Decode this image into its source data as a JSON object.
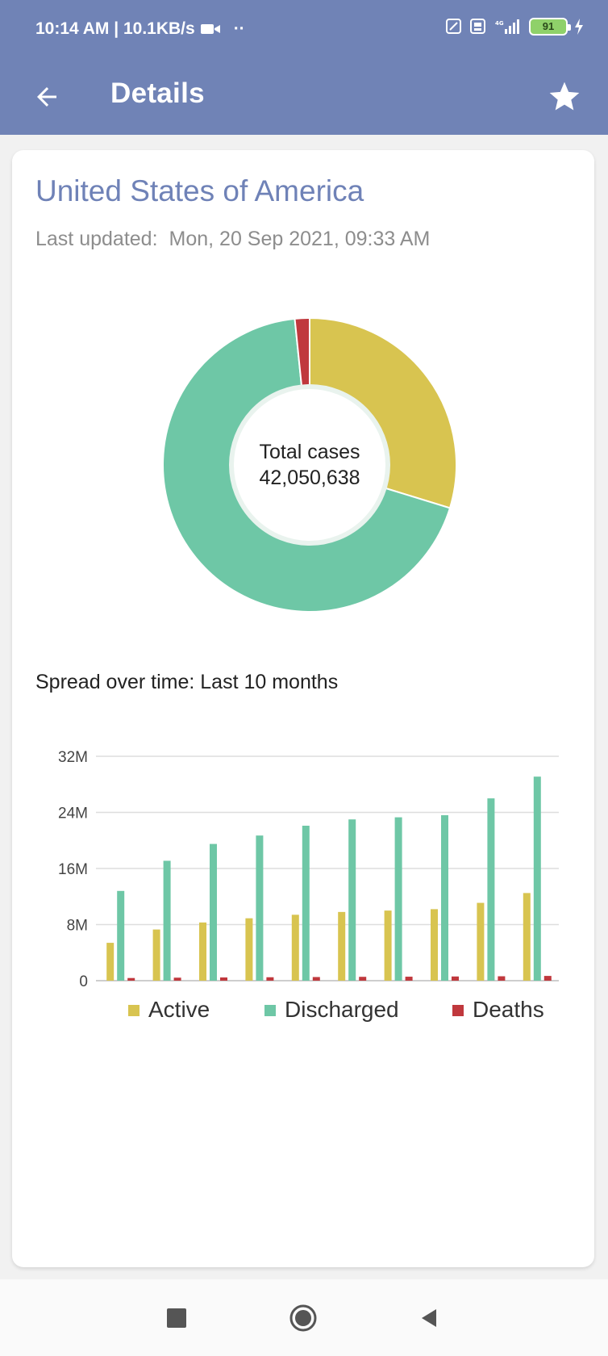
{
  "status_bar": {
    "time": "10:14 AM | 10.1KB/s",
    "battery": "91"
  },
  "app_bar": {
    "title": "Details"
  },
  "card": {
    "country": "United States of America",
    "updated_label": "Last updated:",
    "updated_value": "Mon, 20 Sep 2021, 09:33 AM",
    "donut": {
      "center_label": "Total cases",
      "center_value": "42,050,638"
    },
    "spread_title": "Spread over time: Last 10 months"
  },
  "colors": {
    "active": "#d8c450",
    "discharged": "#6ec7a6",
    "deaths": "#c0383d",
    "app_bar": "#7083b6"
  },
  "chart_data": [
    {
      "type": "pie",
      "variant": "donut",
      "labels": [
        "Active",
        "Discharged",
        "Deaths"
      ],
      "values": [
        12500000,
        28850000,
        680000
      ],
      "center_text": [
        "Total cases",
        "42,050,638"
      ]
    },
    {
      "type": "bar",
      "title": "",
      "xlabel": "",
      "ylabel": "",
      "ylim": [
        0,
        32000000
      ],
      "y_ticks": [
        "0",
        "8M",
        "16M",
        "24M",
        "32M"
      ],
      "y_tick_values": [
        0,
        8000000,
        16000000,
        24000000,
        32000000
      ],
      "categories": [
        "",
        "",
        "",
        "",
        "",
        "",
        "",
        "",
        "",
        ""
      ],
      "series": [
        {
          "name": "Active",
          "values": [
            5400000,
            7300000,
            8300000,
            8900000,
            9400000,
            9800000,
            10000000,
            10200000,
            11100000,
            12500000
          ]
        },
        {
          "name": "Discharged",
          "values": [
            12800000,
            17100000,
            19500000,
            20700000,
            22100000,
            23000000,
            23300000,
            23600000,
            26000000,
            29100000
          ]
        },
        {
          "name": "Deaths",
          "values": [
            380000,
            430000,
            460000,
            490000,
            520000,
            550000,
            570000,
            600000,
            630000,
            680000
          ]
        }
      ],
      "grid": true,
      "legend_position": "bottom"
    }
  ]
}
